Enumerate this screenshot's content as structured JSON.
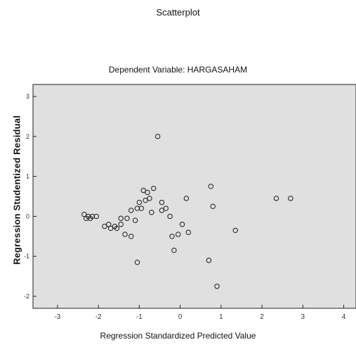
{
  "chart_data": {
    "type": "scatter",
    "title": "Scatterplot",
    "subtitle": "Dependent Variable: HARGASAHAM",
    "xlabel": "Regression Standardized Predicted Value",
    "ylabel": "Regression Studentized Residual",
    "xlim": [
      -3.6,
      4.3
    ],
    "ylim": [
      -2.3,
      3.3
    ],
    "x_ticks": [
      -3,
      -2,
      -1,
      0,
      1,
      2,
      3,
      4
    ],
    "y_ticks": [
      -2,
      -1,
      0,
      1,
      2,
      3
    ],
    "x_tick_labels": [
      "-3",
      "-2",
      "-1",
      "0",
      "1",
      "2",
      "3",
      "4"
    ],
    "y_tick_labels": [
      "-2",
      "-1",
      "0",
      "1",
      "2",
      "3"
    ],
    "grid": false,
    "colors": {
      "plot_background": "#e0e0e0",
      "marker": "#1a1a1a",
      "axis": "#222222"
    },
    "x": [
      -2.35,
      -2.3,
      -2.25,
      -2.2,
      -2.15,
      -2.05,
      -1.85,
      -1.75,
      -1.7,
      -1.6,
      -1.55,
      -1.45,
      -1.45,
      -1.35,
      -1.3,
      -1.2,
      -1.2,
      -1.1,
      -1.05,
      -1.05,
      -1.0,
      -0.95,
      -0.9,
      -0.85,
      -0.8,
      -0.75,
      -0.7,
      -0.65,
      -0.55,
      -0.45,
      -0.45,
      -0.35,
      -0.25,
      -0.2,
      -0.15,
      -0.05,
      0.05,
      0.15,
      0.2,
      0.7,
      0.75,
      0.8,
      0.9,
      1.35,
      2.35,
      2.7
    ],
    "y": [
      0.05,
      -0.05,
      0.0,
      -0.05,
      0.0,
      0.0,
      -0.25,
      -0.2,
      -0.3,
      -0.25,
      -0.3,
      -0.05,
      -0.2,
      -0.45,
      -0.05,
      -0.5,
      0.15,
      -0.1,
      0.2,
      -1.15,
      0.35,
      0.2,
      0.65,
      0.4,
      0.6,
      0.45,
      0.1,
      0.7,
      2.0,
      0.35,
      0.15,
      0.2,
      0.0,
      -0.5,
      -0.85,
      -0.45,
      -0.2,
      0.45,
      -0.4,
      -1.1,
      0.75,
      0.25,
      -1.75,
      -0.35,
      0.45,
      0.45
    ]
  }
}
